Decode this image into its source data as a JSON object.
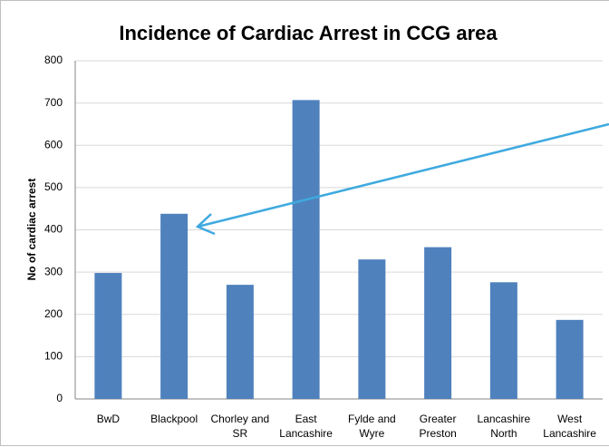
{
  "chart_data": {
    "type": "bar",
    "title": "Incidence of Cardiac Arrest in CCG area",
    "y_label": "No of cardiac arrest",
    "categories": [
      "BwD",
      "Blackpool",
      "Chorley and SR",
      "East Lancashire",
      "Fylde and Wyre",
      "Greater Preston",
      "Lancashire North",
      "West Lancashire"
    ],
    "values": [
      298,
      438,
      270,
      707,
      330,
      359,
      276,
      187
    ],
    "color": "#4f81bd",
    "ylim": [
      0,
      800
    ],
    "yticks": [
      0,
      100,
      200,
      300,
      400,
      500,
      600,
      700,
      800
    ],
    "grid": true
  }
}
